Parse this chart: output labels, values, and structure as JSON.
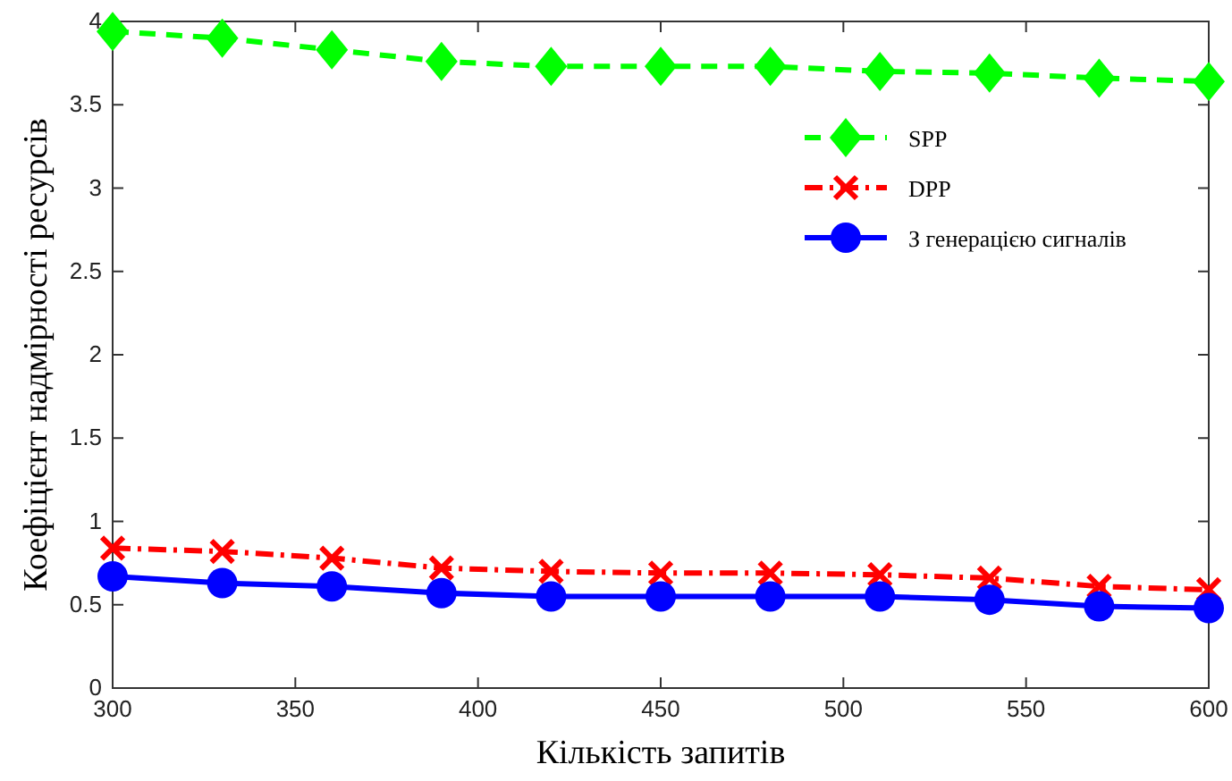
{
  "chart_data": {
    "type": "line",
    "xlabel": "Кількість запитів",
    "ylabel": "Коефіцієнт надмірності ресурсів",
    "x": [
      300,
      330,
      360,
      390,
      420,
      450,
      480,
      510,
      540,
      570,
      600
    ],
    "xlim": [
      300,
      600
    ],
    "xticks": [
      300,
      350,
      400,
      450,
      500,
      550,
      600
    ],
    "ylim": [
      0,
      4
    ],
    "yticks": [
      0,
      0.5,
      1,
      1.5,
      2,
      2.5,
      3,
      3.5,
      4
    ],
    "grid": false,
    "legend": "top right",
    "series": [
      {
        "name": "SPP",
        "color": "#00ff00",
        "marker": "diamond",
        "line_style": "dashed",
        "values": [
          3.94,
          3.9,
          3.83,
          3.76,
          3.73,
          3.73,
          3.73,
          3.7,
          3.69,
          3.66,
          3.64
        ]
      },
      {
        "name": "DPP",
        "color": "#ff0000",
        "marker": "cross",
        "line_style": "dashdot",
        "values": [
          0.84,
          0.82,
          0.78,
          0.72,
          0.7,
          0.69,
          0.69,
          0.68,
          0.66,
          0.61,
          0.59
        ]
      },
      {
        "name": "З генерацією сигналів",
        "color": "#0000ff",
        "marker": "circle",
        "line_style": "solid",
        "values": [
          0.67,
          0.63,
          0.61,
          0.57,
          0.55,
          0.55,
          0.55,
          0.55,
          0.53,
          0.49,
          0.48
        ]
      }
    ]
  }
}
